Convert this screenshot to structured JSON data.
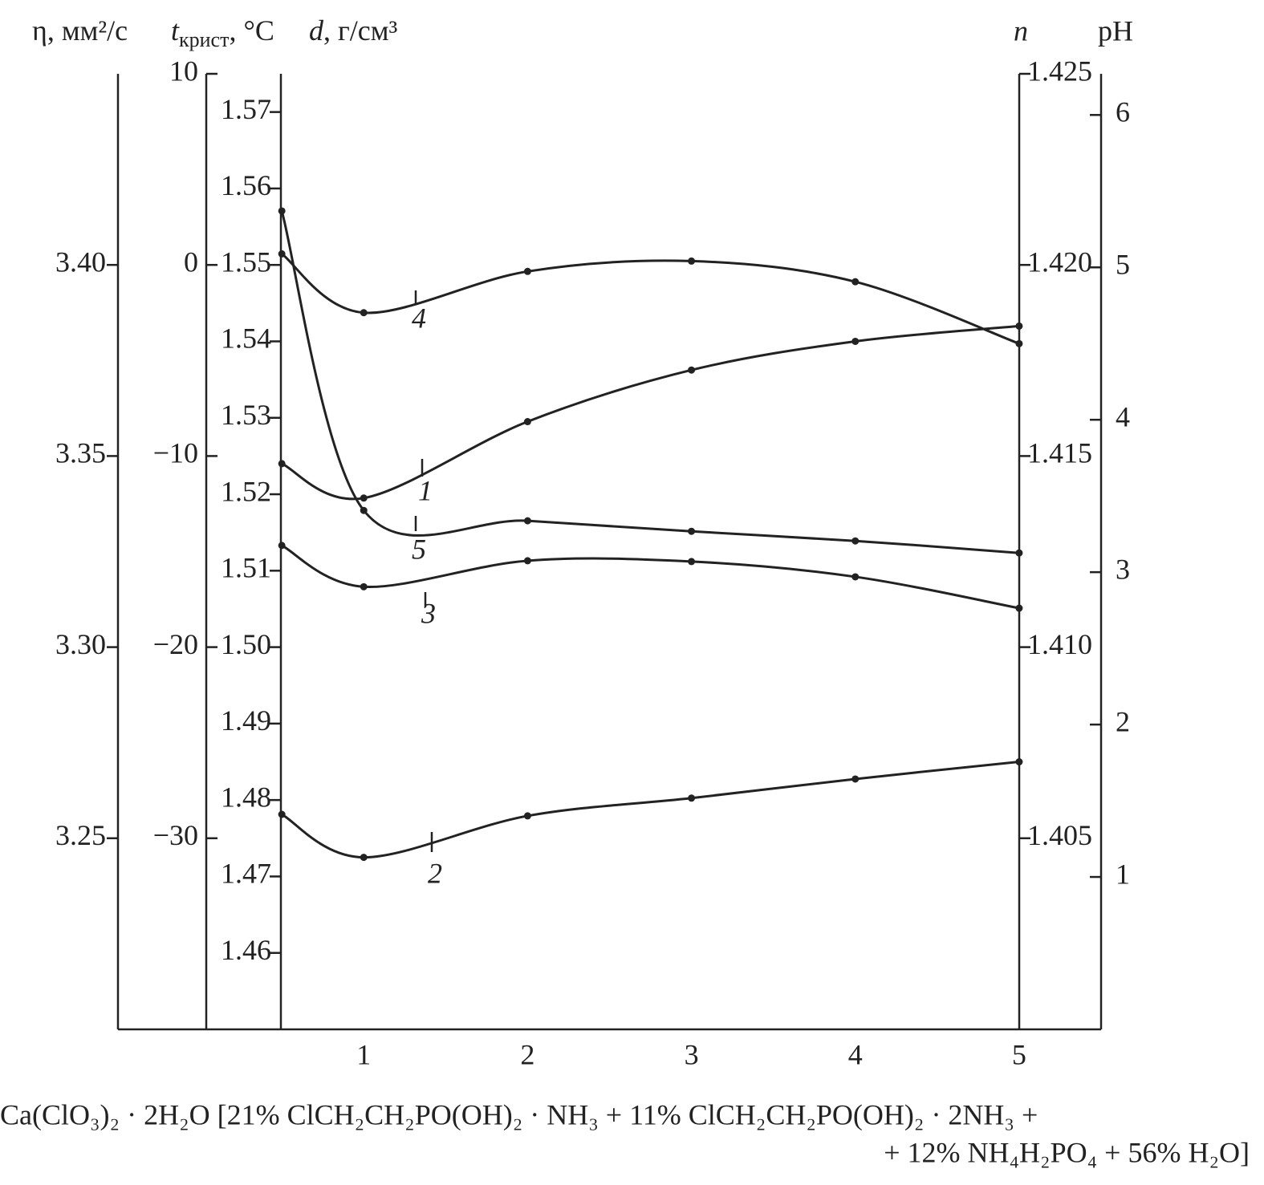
{
  "chart_data": {
    "type": "line",
    "xlabel": [
      "Ca(ClO₃)₂ · 2H₂O [21% ClCH₂CH₂PO(OH)₂ · NH₃ + 11% ClCH₂CH₂PO(OH)₂ · 2NH₃ +",
      "+ 12% NH₄H₂PO₄ + 56% H₂O]"
    ],
    "xlim": [
      -0.5,
      5.5
    ],
    "xticks": [
      1,
      2,
      3,
      4,
      5
    ],
    "x": [
      0.5,
      1,
      2,
      3,
      4,
      5
    ],
    "axes": [
      {
        "label": [
          "η, мм²/с"
        ],
        "ylim": [
          3.2,
          3.45
        ],
        "yticks": [
          {
            "value": 3.4,
            "label": "3.40"
          },
          3.35,
          {
            "value": 3.3,
            "label": "3.30"
          },
          3.25
        ]
      },
      {
        "label": [
          "t",
          "крист",
          ", °C"
        ],
        "ylim": [
          -40,
          10
        ],
        "yticks": [
          10,
          0,
          {
            "value": -10,
            "label": "−10"
          },
          {
            "value": -20,
            "label": "−20"
          },
          {
            "value": -30,
            "label": "−30"
          }
        ]
      },
      {
        "label": [
          "d",
          ", г/см³"
        ],
        "ylim": [
          1.45,
          1.575
        ],
        "yticks": [
          1.57,
          1.56,
          1.55,
          1.54,
          1.53,
          1.52,
          1.51,
          {
            "value": 1.5,
            "label": "1.50"
          },
          1.49,
          1.48,
          1.47,
          1.46
        ]
      },
      {
        "label": [
          "n"
        ],
        "ylim": [
          1.4,
          1.425
        ],
        "yticks": [
          1.425,
          {
            "value": 1.42,
            "label": "1.420"
          },
          1.415,
          {
            "value": 1.41,
            "label": "1.410"
          },
          1.405
        ]
      },
      {
        "label": [
          "pH"
        ],
        "ylim": [
          0,
          6.27
        ],
        "yticks": [
          6,
          5,
          4,
          3,
          2,
          1
        ]
      }
    ],
    "series": [
      {
        "name": "1",
        "axis": 0,
        "color": "#222222",
        "values": [
          3.348,
          3.339,
          3.359,
          3.3725,
          3.38,
          3.384
        ]
      },
      {
        "name": "2",
        "axis": 1,
        "color": "#222222",
        "values": [
          -28.75,
          -31.0,
          -28.83,
          -27.9,
          -26.9,
          -26.0
        ]
      },
      {
        "name": "3",
        "axis": 2,
        "color": "#222222",
        "values": [
          1.5133,
          1.5079,
          1.5113,
          1.5112,
          1.5092,
          1.5051
        ]
      },
      {
        "name": "4",
        "axis": 3,
        "color": "#222222",
        "values": [
          1.42029,
          1.41875,
          1.41983,
          1.4201,
          1.41956,
          1.41794
        ]
      },
      {
        "name": "5",
        "axis": 4,
        "color": "#222222",
        "values": [
          5.37,
          3.405,
          3.337,
          3.268,
          3.205,
          3.126
        ]
      }
    ]
  }
}
